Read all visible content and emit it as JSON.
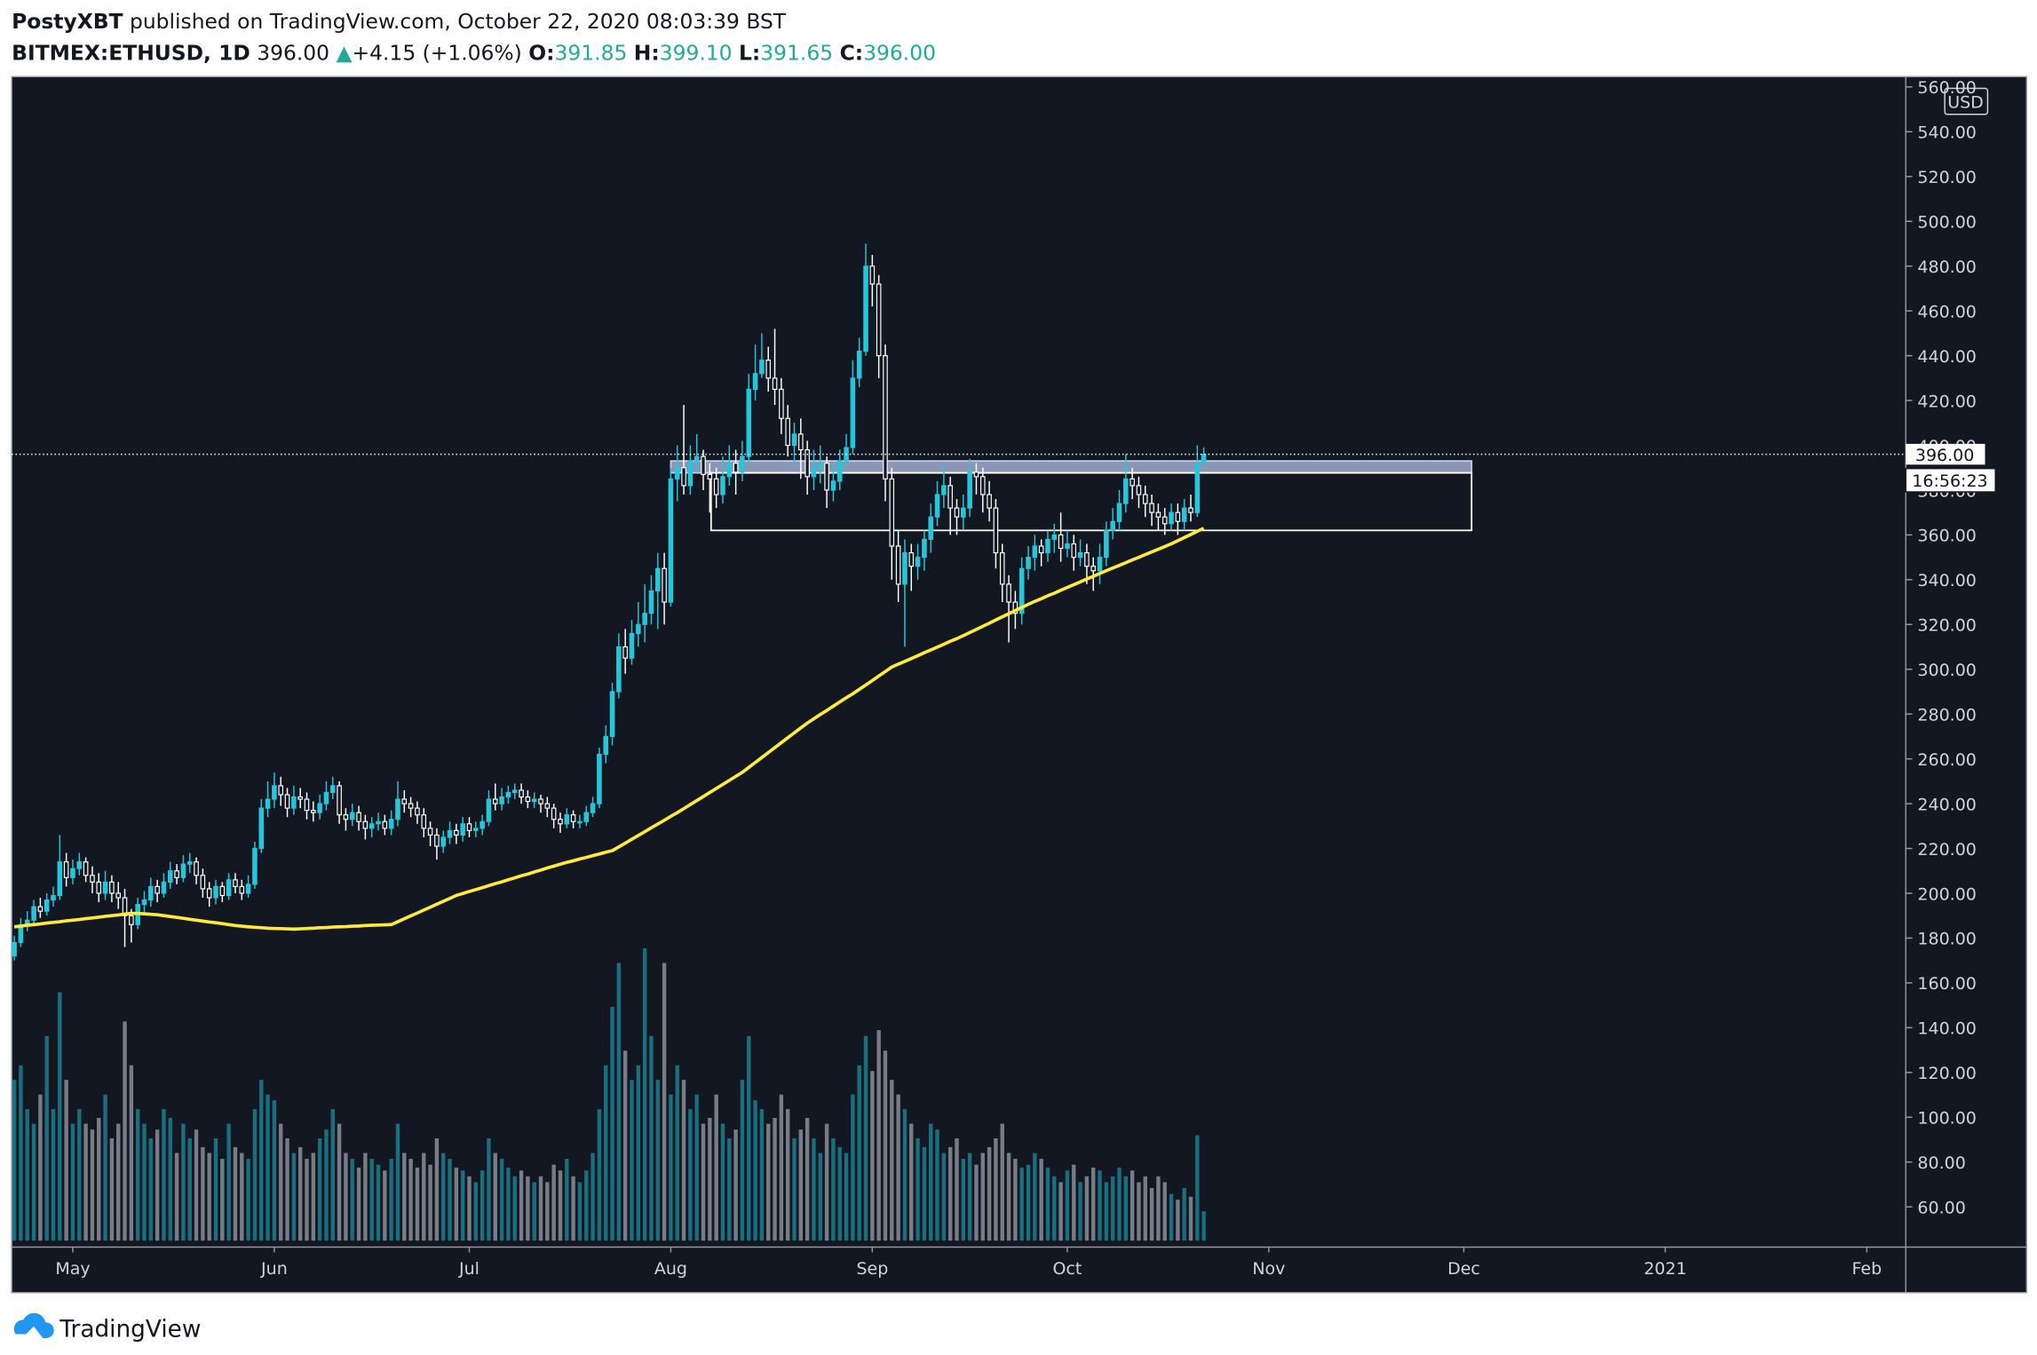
{
  "header": {
    "author": "PostyXBT",
    "published": "published on TradingView.com, October 22, 2020 08:03:39 BST",
    "symbol": "BITMEX:ETHUSD, 1D",
    "last": "396.00",
    "arrow": "▲",
    "change": "+4.15 (+1.06%)",
    "ohlc": [
      {
        "label": "O:",
        "value": "391.85"
      },
      {
        "label": "H:",
        "value": "399.10"
      },
      {
        "label": "L:",
        "value": "391.65"
      },
      {
        "label": "C:",
        "value": "396.00"
      }
    ]
  },
  "footer": {
    "brand": "TradingView"
  },
  "chart_data": {
    "type": "candlestick",
    "currency": "USD",
    "last_price_label": "396.00",
    "countdown": "16:56:23",
    "up_color": "#26c6da",
    "down_color": "#ffffff",
    "volume_up_color": "#1b7f8e",
    "volume_down_color": "#8a8e99",
    "ma_color": "#ffeb3b",
    "grid": false,
    "xlim": [
      -0.4,
      291
    ],
    "ylim": [
      42,
      564
    ],
    "vlim": [
      0,
      100
    ],
    "xticks": [
      {
        "value": 9,
        "label": "May"
      },
      {
        "value": 40,
        "label": "Jun"
      },
      {
        "value": 70,
        "label": "Jul"
      },
      {
        "value": 101,
        "label": "Aug"
      },
      {
        "value": 132,
        "label": "Sep"
      },
      {
        "value": 162,
        "label": "Oct"
      },
      {
        "value": 193,
        "label": "Nov"
      },
      {
        "value": 223,
        "label": "Dec"
      },
      {
        "value": 254,
        "label": "2021"
      },
      {
        "value": 285,
        "label": "Feb"
      }
    ],
    "yticks": [
      {
        "value": 60,
        "label": "60.00"
      },
      {
        "value": 80,
        "label": "80.00"
      },
      {
        "value": 100,
        "label": "100.00"
      },
      {
        "value": 120,
        "label": "120.00"
      },
      {
        "value": 140,
        "label": "140.00"
      },
      {
        "value": 160,
        "label": "160.00"
      },
      {
        "value": 180,
        "label": "180.00"
      },
      {
        "value": 200,
        "label": "200.00"
      },
      {
        "value": 220,
        "label": "220.00"
      },
      {
        "value": 240,
        "label": "240.00"
      },
      {
        "value": 260,
        "label": "260.00"
      },
      {
        "value": 280,
        "label": "280.00"
      },
      {
        "value": 300,
        "label": "300.00"
      },
      {
        "value": 320,
        "label": "320.00"
      },
      {
        "value": 340,
        "label": "340.00"
      },
      {
        "value": 360,
        "label": "360.00"
      },
      {
        "value": 380,
        "label": "380.00"
      },
      {
        "value": 400,
        "label": "400.00"
      },
      {
        "value": 420,
        "label": "420.00"
      },
      {
        "value": 440,
        "label": "440.00"
      },
      {
        "value": 460,
        "label": "460.00"
      },
      {
        "value": 480,
        "label": "480.00"
      },
      {
        "value": 500,
        "label": "500.00"
      },
      {
        "value": 520,
        "label": "520.00"
      },
      {
        "value": 540,
        "label": "540.00"
      },
      {
        "value": 560,
        "label": "560.00"
      }
    ],
    "rectangles": [
      {
        "x": [
          101,
          224.2
        ],
        "y": [
          387.7,
          393
        ],
        "fill": "rgba(180,192,232,0.75)",
        "stroke": "#c8d0f0"
      },
      {
        "x": [
          107.2,
          224.2
        ],
        "y": [
          362,
          387.7
        ],
        "fill": "none",
        "stroke": "#ffffff"
      }
    ],
    "open": [
      172,
      178,
      186,
      188,
      194,
      192,
      197,
      199,
      214,
      207,
      211,
      214,
      208,
      205,
      200,
      205,
      200,
      198,
      190,
      186,
      195,
      197,
      203,
      200,
      205,
      210,
      207,
      213,
      214,
      208,
      202,
      198,
      203,
      199,
      206,
      203,
      200,
      204,
      220,
      238,
      242,
      248,
      244,
      238,
      243,
      242,
      237,
      236,
      240,
      245,
      248,
      235,
      233,
      236,
      232,
      229,
      231,
      232,
      229,
      233,
      242,
      240,
      238,
      235,
      229,
      226,
      221,
      225,
      228,
      226,
      231,
      228,
      229,
      232,
      242,
      240,
      243,
      245,
      246,
      243,
      241,
      242,
      240,
      238,
      233,
      231,
      235,
      232,
      232,
      236,
      240,
      262,
      270,
      290,
      310,
      305,
      316,
      320,
      325,
      335,
      345,
      330,
      385,
      390,
      382,
      393,
      395,
      387,
      385,
      378,
      386,
      392,
      388,
      395,
      425,
      432,
      438,
      430,
      425,
      412,
      400,
      405,
      398,
      386,
      390,
      392,
      380,
      384,
      393,
      399,
      430,
      442,
      480,
      472,
      440,
      385,
      355,
      338,
      352,
      346,
      350,
      358,
      368,
      378,
      382,
      372,
      368,
      372,
      388,
      386,
      378,
      372,
      352,
      338,
      330,
      325,
      345,
      350,
      355,
      352,
      358,
      360,
      354,
      356,
      350,
      352,
      346,
      344,
      350,
      362,
      366,
      374,
      385,
      382,
      378,
      374,
      370,
      368,
      365,
      370,
      366,
      372,
      370,
      391.85
    ],
    "high": [
      181,
      189,
      192,
      197,
      198,
      200,
      203,
      226,
      218,
      215,
      218,
      216,
      212,
      209,
      210,
      208,
      205,
      202,
      193,
      198,
      201,
      207,
      206,
      209,
      214,
      213,
      217,
      218,
      216,
      211,
      205,
      206,
      205,
      209,
      209,
      206,
      208,
      223,
      242,
      250,
      254,
      252,
      247,
      248,
      247,
      245,
      241,
      244,
      250,
      252,
      250,
      238,
      240,
      239,
      235,
      234,
      236,
      235,
      237,
      250,
      246,
      243,
      241,
      238,
      232,
      229,
      228,
      232,
      231,
      234,
      234,
      232,
      235,
      246,
      249,
      247,
      248,
      249,
      249,
      246,
      245,
      244,
      243,
      240,
      236,
      238,
      237,
      235,
      239,
      243,
      265,
      275,
      294,
      316,
      318,
      322,
      330,
      338,
      342,
      352,
      352,
      390,
      400,
      418,
      400,
      405,
      398,
      392,
      390,
      395,
      400,
      398,
      402,
      432,
      445,
      450,
      444,
      452,
      430,
      418,
      410,
      412,
      402,
      398,
      400,
      395,
      392,
      398,
      405,
      438,
      448,
      490,
      485,
      476,
      445,
      390,
      362,
      358,
      356,
      356,
      362,
      374,
      384,
      392,
      386,
      376,
      378,
      394,
      392,
      390,
      384,
      376,
      356,
      342,
      335,
      350,
      355,
      360,
      358,
      362,
      365,
      370,
      362,
      360,
      358,
      356,
      350,
      356,
      366,
      372,
      380,
      396,
      390,
      386,
      382,
      378,
      374,
      372,
      374,
      374,
      376,
      378,
      400,
      399.1
    ],
    "low": [
      170,
      176,
      183,
      186,
      189,
      190,
      194,
      197,
      203,
      204,
      208,
      205,
      200,
      196,
      197,
      196,
      193,
      176,
      178,
      184,
      191,
      194,
      196,
      198,
      202,
      204,
      205,
      209,
      204,
      198,
      194,
      195,
      196,
      197,
      200,
      197,
      198,
      202,
      218,
      234,
      238,
      239,
      234,
      235,
      238,
      233,
      232,
      233,
      237,
      242,
      231,
      228,
      230,
      228,
      224,
      225,
      228,
      226,
      226,
      230,
      236,
      234,
      231,
      225,
      221,
      215,
      218,
      222,
      222,
      223,
      225,
      225,
      226,
      230,
      237,
      237,
      240,
      242,
      240,
      238,
      238,
      236,
      234,
      229,
      227,
      229,
      229,
      229,
      230,
      234,
      238,
      258,
      266,
      287,
      298,
      302,
      310,
      312,
      320,
      318,
      320,
      328,
      375,
      378,
      378,
      388,
      380,
      370,
      372,
      374,
      382,
      378,
      384,
      392,
      420,
      430,
      424,
      418,
      405,
      395,
      390,
      385,
      378,
      380,
      383,
      372,
      375,
      380,
      390,
      396,
      426,
      440,
      462,
      430,
      375,
      340,
      330,
      310,
      335,
      340,
      344,
      352,
      364,
      372,
      360,
      360,
      362,
      368,
      378,
      370,
      366,
      345,
      330,
      312,
      318,
      320,
      340,
      344,
      346,
      348,
      352,
      348,
      350,
      344,
      346,
      338,
      335,
      338,
      346,
      358,
      362,
      370,
      376,
      372,
      368,
      364,
      362,
      360,
      362,
      360,
      362,
      366,
      368,
      391.65
    ],
    "close": [
      178,
      186,
      188,
      194,
      192,
      197,
      199,
      214,
      207,
      211,
      214,
      208,
      205,
      200,
      205,
      200,
      198,
      190,
      186,
      195,
      197,
      203,
      200,
      205,
      210,
      207,
      213,
      214,
      208,
      202,
      198,
      203,
      199,
      206,
      203,
      200,
      204,
      220,
      238,
      242,
      248,
      244,
      238,
      243,
      242,
      237,
      236,
      240,
      245,
      248,
      235,
      233,
      236,
      232,
      229,
      231,
      232,
      229,
      233,
      242,
      240,
      238,
      235,
      229,
      226,
      221,
      225,
      228,
      226,
      231,
      228,
      229,
      232,
      242,
      240,
      243,
      245,
      246,
      243,
      241,
      242,
      240,
      238,
      233,
      231,
      235,
      232,
      232,
      236,
      240,
      262,
      270,
      290,
      310,
      305,
      316,
      320,
      325,
      335,
      345,
      330,
      385,
      390,
      382,
      393,
      395,
      387,
      385,
      378,
      386,
      392,
      388,
      395,
      425,
      432,
      438,
      430,
      425,
      412,
      400,
      405,
      398,
      386,
      390,
      392,
      380,
      384,
      393,
      399,
      430,
      442,
      480,
      472,
      440,
      385,
      355,
      338,
      352,
      346,
      350,
      358,
      368,
      378,
      382,
      372,
      368,
      372,
      388,
      386,
      378,
      372,
      352,
      338,
      330,
      325,
      345,
      350,
      355,
      352,
      358,
      360,
      354,
      356,
      350,
      352,
      346,
      344,
      350,
      362,
      366,
      374,
      385,
      382,
      378,
      374,
      370,
      368,
      365,
      370,
      366,
      372,
      370,
      391.85,
      396
    ],
    "volume": [
      55,
      60,
      45,
      40,
      50,
      70,
      45,
      85,
      55,
      40,
      45,
      40,
      38,
      42,
      50,
      35,
      40,
      75,
      60,
      45,
      40,
      35,
      38,
      45,
      42,
      30,
      40,
      35,
      38,
      32,
      30,
      35,
      28,
      40,
      32,
      30,
      28,
      45,
      55,
      50,
      48,
      40,
      35,
      30,
      32,
      28,
      30,
      35,
      38,
      45,
      40,
      30,
      28,
      25,
      30,
      28,
      26,
      24,
      28,
      40,
      30,
      28,
      25,
      30,
      26,
      35,
      30,
      28,
      25,
      24,
      22,
      20,
      24,
      35,
      30,
      28,
      25,
      22,
      24,
      22,
      20,
      22,
      20,
      26,
      24,
      28,
      22,
      20,
      24,
      30,
      45,
      60,
      80,
      95,
      65,
      55,
      60,
      100,
      70,
      55,
      95,
      50,
      60,
      55,
      45,
      50,
      40,
      42,
      50,
      40,
      35,
      38,
      55,
      70,
      48,
      45,
      40,
      42,
      50,
      45,
      35,
      38,
      42,
      35,
      30,
      40,
      35,
      32,
      30,
      50,
      60,
      70,
      58,
      72,
      65,
      55,
      50,
      45,
      40,
      35,
      32,
      40,
      38,
      30,
      32,
      35,
      28,
      30,
      26,
      30,
      32,
      35,
      40,
      30,
      28,
      25,
      26,
      30,
      28,
      25,
      22,
      20,
      24,
      26,
      20,
      22,
      25,
      24,
      20,
      22,
      25,
      22,
      24,
      20,
      22,
      18,
      22,
      20,
      16,
      14,
      18,
      15,
      36,
      10
    ],
    "ma": [
      185,
      185.3,
      185.7,
      186,
      186.3,
      186.7,
      187,
      187.3,
      187.7,
      188,
      188.3,
      188.7,
      189,
      189.3,
      189.7,
      190,
      190.3,
      190.7,
      191,
      191,
      190.8,
      190.6,
      190.4,
      190,
      189.6,
      189.2,
      188.8,
      188.4,
      188,
      187.6,
      187.2,
      186.8,
      186.4,
      186,
      185.6,
      185.3,
      185,
      184.8,
      184.6,
      184.4,
      184.3,
      184.2,
      184.1,
      184,
      184.1,
      184.3,
      184.4,
      184.6,
      184.7,
      184.9,
      185,
      185.1,
      185.3,
      185.4,
      185.6,
      185.7,
      185.8,
      185.9,
      186,
      187.3,
      188.6,
      189.9,
      191.2,
      192.5,
      193.8,
      195.1,
      196.4,
      197.7,
      199,
      199.9,
      200.8,
      201.6,
      202.5,
      203.4,
      204.3,
      205.1,
      206,
      206.9,
      207.8,
      208.6,
      209.5,
      210.4,
      211.3,
      212.1,
      213,
      213.8,
      214.5,
      215.3,
      216,
      216.8,
      217.5,
      218.3,
      219,
      220.7,
      222.4,
      224.1,
      225.8,
      227.5,
      229.2,
      230.9,
      232.6,
      234.3,
      236,
      237.8,
      239.6,
      241.4,
      243.2,
      245,
      246.8,
      248.6,
      250.4,
      252.2,
      254,
      256.2,
      258.4,
      260.6,
      262.8,
      265,
      267.2,
      269.4,
      271.6,
      273.8,
      276,
      277.9,
      279.8,
      281.6,
      283.5,
      285.4,
      287.3,
      289.1,
      291,
      293,
      295,
      297,
      299,
      301,
      302.3,
      303.5,
      304.8,
      306.1,
      307.4,
      308.6,
      309.9,
      311.2,
      312.5,
      313.7,
      315,
      316.4,
      317.8,
      319.2,
      320.6,
      322,
      323.4,
      324.8,
      326.2,
      327.6,
      329,
      330.3,
      331.5,
      332.8,
      334,
      335.3,
      336.5,
      337.8,
      339,
      340.3,
      341.5,
      342.8,
      344,
      345.2,
      346.4,
      347.6,
      348.8,
      350,
      351.2,
      352.4,
      353.6,
      354.8,
      356,
      357.4,
      358.8,
      360.2,
      361.6,
      363
    ]
  }
}
